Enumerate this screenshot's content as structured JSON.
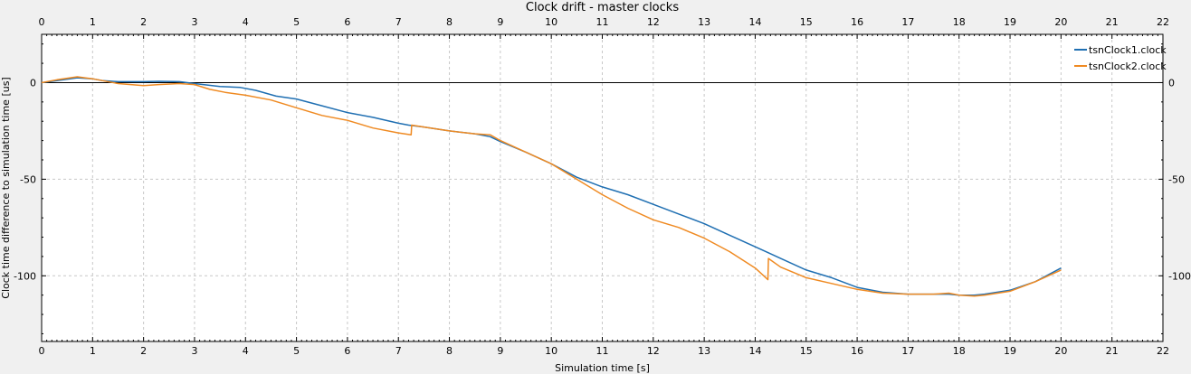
{
  "chart_data": {
    "type": "line",
    "title": "Clock drift - master clocks",
    "xlabel": "Simulation time [s]",
    "ylabel": "Clock time difference to simulation time [us]",
    "xlim": [
      0,
      22
    ],
    "ylim": [
      -134,
      25
    ],
    "x_ticks": [
      0,
      1,
      2,
      3,
      4,
      5,
      6,
      7,
      8,
      9,
      10,
      11,
      12,
      13,
      14,
      15,
      16,
      17,
      18,
      19,
      20,
      21,
      22
    ],
    "y_ticks": [
      0,
      -50,
      -100
    ],
    "grid": true,
    "zero_line": true,
    "legend_position": "top-right",
    "series": [
      {
        "name": "tsnClock1.clock",
        "color": "#1f6fb2",
        "x": [
          0,
          0.3,
          0.7,
          1.0,
          1.2,
          1.5,
          2.0,
          2.3,
          2.7,
          3.0,
          3.5,
          3.9,
          4.2,
          4.6,
          5.0,
          5.5,
          6.0,
          6.5,
          7.0,
          7.2,
          7.5,
          8.0,
          8.5,
          8.8,
          9.0,
          9.5,
          10.0,
          10.5,
          11.0,
          11.5,
          12.0,
          12.5,
          13.0,
          13.5,
          14.0,
          14.25,
          14.5,
          15.0,
          15.5,
          16.0,
          16.5,
          17.0,
          17.5,
          17.8,
          18.0,
          18.3,
          18.5,
          19.0,
          19.5,
          20.0
        ],
        "y": [
          0,
          1,
          2.5,
          2,
          1,
          0.5,
          0.5,
          0.7,
          0.5,
          -0.5,
          -2,
          -2.5,
          -4,
          -7,
          -8.5,
          -12,
          -15.5,
          -18,
          -21,
          -22,
          -23,
          -25,
          -26.5,
          -28,
          -30.5,
          -36,
          -42,
          -49,
          -54,
          -58,
          -63,
          -68,
          -73,
          -79,
          -85,
          -88,
          -91,
          -97,
          -101,
          -106,
          -108.5,
          -109.5,
          -109.5,
          -109.5,
          -110,
          -110,
          -109.5,
          -107.5,
          -103,
          -96
        ]
      },
      {
        "name": "tsnClock2.clock",
        "color": "#ef8a22",
        "x": [
          0,
          0.3,
          0.7,
          1.0,
          1.2,
          1.5,
          2.0,
          2.3,
          2.7,
          3.0,
          3.3,
          3.6,
          4.0,
          4.5,
          5.0,
          5.5,
          6.0,
          6.5,
          7.0,
          7.25,
          7.26,
          7.5,
          8.0,
          8.5,
          8.8,
          9.0,
          9.5,
          10.0,
          10.5,
          11.0,
          11.5,
          12.0,
          12.5,
          13.0,
          13.5,
          14.0,
          14.25,
          14.26,
          14.5,
          15.0,
          15.5,
          16.0,
          16.5,
          17.0,
          17.5,
          17.8,
          18.0,
          18.3,
          18.5,
          19.0,
          19.5,
          20.0
        ],
        "y": [
          0,
          1.5,
          3,
          2,
          1,
          -0.5,
          -1.5,
          -1,
          -0.5,
          -1,
          -3.5,
          -5,
          -6.5,
          -9,
          -13,
          -17,
          -19.5,
          -23.5,
          -26,
          -27,
          -22,
          -23,
          -25,
          -26.5,
          -27,
          -30,
          -36,
          -42,
          -50,
          -58,
          -65,
          -71,
          -75,
          -80.5,
          -87.5,
          -96,
          -102,
          -91,
          -95.5,
          -101,
          -104,
          -107,
          -109,
          -109.5,
          -109.5,
          -109,
          -110,
          -110.5,
          -110,
          -108,
          -103,
          -97
        ]
      }
    ]
  }
}
